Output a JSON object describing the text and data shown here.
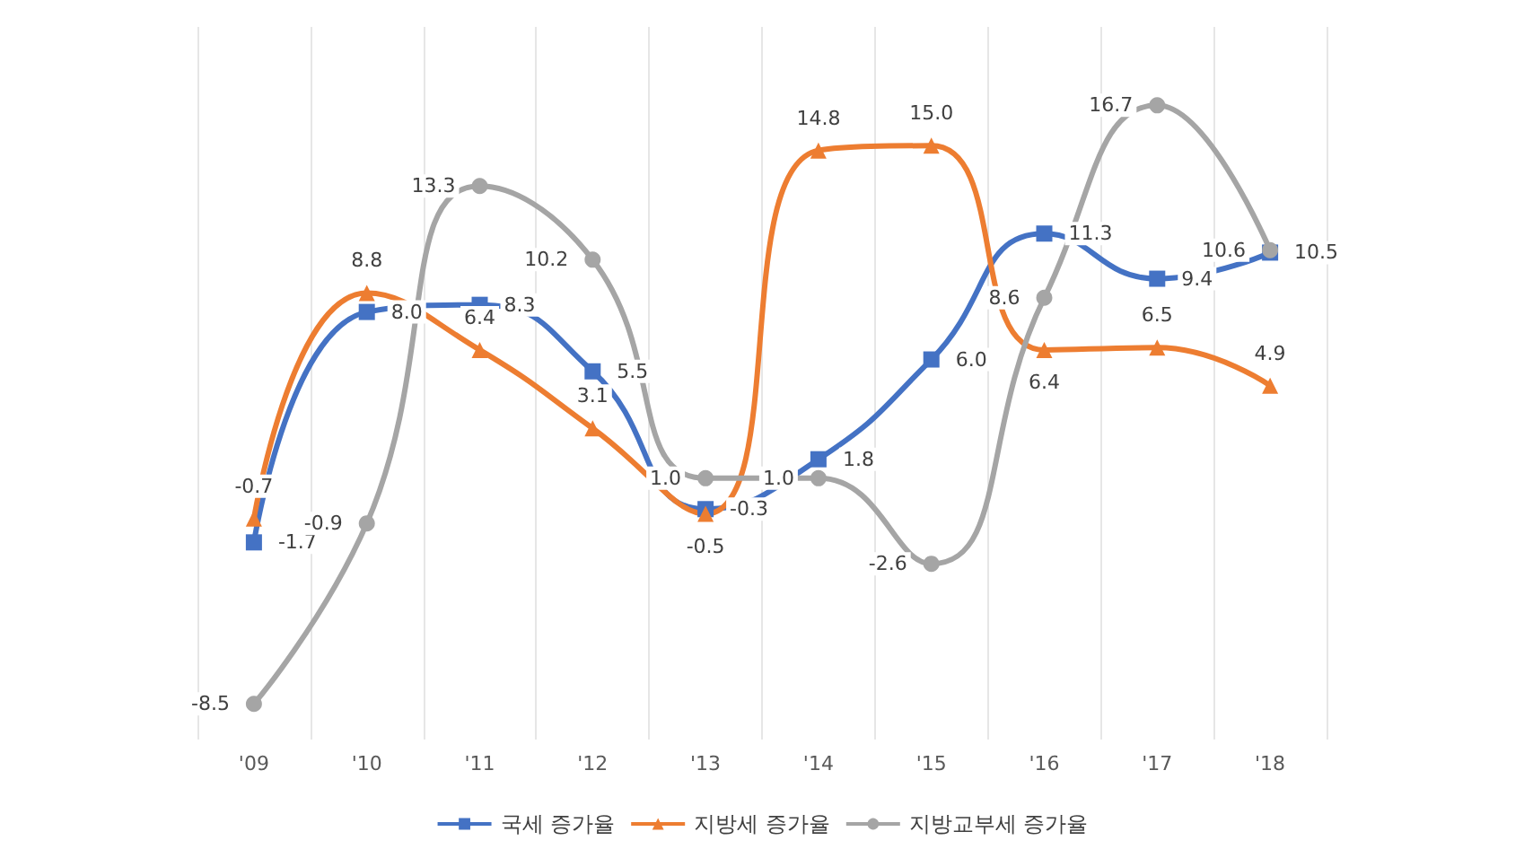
{
  "chart_data": {
    "type": "line",
    "categories": [
      "'09",
      "'10",
      "'11",
      "'12",
      "'13",
      "'14",
      "'15",
      "'16",
      "'17",
      "'18"
    ],
    "series": [
      {
        "name": "국세 증가율",
        "color": "#4472c4",
        "marker": "square",
        "values": [
          -1.7,
          8.0,
          8.3,
          5.5,
          -0.3,
          1.8,
          6.0,
          11.3,
          9.4,
          10.5
        ],
        "value_labels": [
          "-1.7",
          "8.0",
          "8.3",
          "5.5",
          "-0.3",
          "1.8",
          "6.0",
          "11.3",
          "9.4",
          "10.5"
        ]
      },
      {
        "name": "지방세 증가율",
        "color": "#ed7d31",
        "marker": "triangle",
        "values": [
          -0.7,
          8.8,
          6.4,
          3.1,
          -0.5,
          14.8,
          15.0,
          6.4,
          6.5,
          4.9
        ],
        "value_labels": [
          "-0.7",
          "8.8",
          "6.4",
          "3.1",
          "-0.5",
          "14.8",
          "15.0",
          "6.4",
          "6.5",
          "4.9"
        ]
      },
      {
        "name": "지방교부세 증가율",
        "color": "#a5a5a5",
        "marker": "circle",
        "values": [
          -8.5,
          -0.9,
          13.3,
          10.2,
          1.0,
          1.0,
          -2.6,
          8.6,
          16.7,
          10.6
        ],
        "value_labels": [
          "-8.5",
          "-0.9",
          "13.3",
          "10.2",
          "1.0",
          "1.0",
          "-2.6",
          "8.6",
          "16.7",
          "10.6"
        ]
      }
    ],
    "ylim": [
      -10,
      20
    ],
    "tick_labels": "x",
    "data_labels": true,
    "grid": "x",
    "legend": "bottom"
  }
}
